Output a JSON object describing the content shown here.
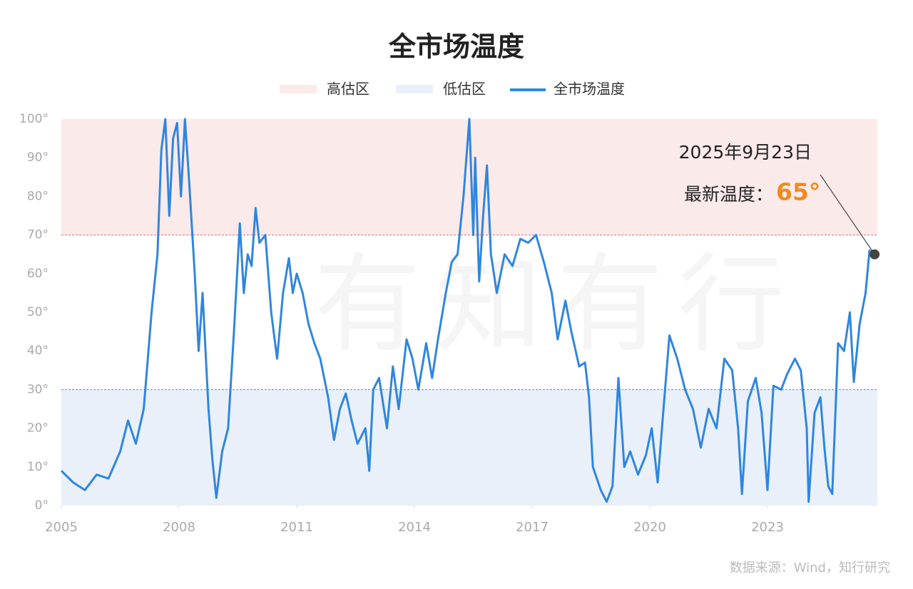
{
  "chart_data": {
    "type": "line",
    "title": "全市场温度",
    "bands": [
      {
        "name": "高估区",
        "range": [
          70,
          100
        ],
        "color": "#fbeaea",
        "line_color": "#e06a6a"
      },
      {
        "name": "低估区",
        "range": [
          0,
          30
        ],
        "color": "#e9f0fa",
        "line_color": "#4a90d9"
      }
    ],
    "x": [
      2005.0,
      2005.3,
      2005.6,
      2005.9,
      2006.2,
      2006.5,
      2006.7,
      2006.9,
      2007.1,
      2007.3,
      2007.45,
      2007.55,
      2007.65,
      2007.75,
      2007.85,
      2007.95,
      2008.05,
      2008.15,
      2008.25,
      2008.4,
      2008.5,
      2008.6,
      2008.75,
      2008.85,
      2008.95,
      2009.1,
      2009.25,
      2009.4,
      2009.55,
      2009.65,
      2009.75,
      2009.85,
      2009.95,
      2010.05,
      2010.2,
      2010.35,
      2010.5,
      2010.65,
      2010.8,
      2010.9,
      2011.0,
      2011.15,
      2011.3,
      2011.45,
      2011.6,
      2011.8,
      2011.95,
      2012.1,
      2012.25,
      2012.4,
      2012.55,
      2012.75,
      2012.85,
      2012.95,
      2013.1,
      2013.3,
      2013.45,
      2013.6,
      2013.8,
      2013.95,
      2014.1,
      2014.3,
      2014.45,
      2014.6,
      2014.8,
      2014.95,
      2015.1,
      2015.25,
      2015.4,
      2015.5,
      2015.55,
      2015.65,
      2015.75,
      2015.85,
      2015.95,
      2016.1,
      2016.3,
      2016.5,
      2016.7,
      2016.9,
      2017.1,
      2017.3,
      2017.5,
      2017.65,
      2017.85,
      2018.0,
      2018.2,
      2018.35,
      2018.45,
      2018.55,
      2018.75,
      2018.9,
      2019.05,
      2019.2,
      2019.35,
      2019.5,
      2019.7,
      2019.9,
      2020.05,
      2020.2,
      2020.35,
      2020.5,
      2020.7,
      2020.9,
      2021.1,
      2021.3,
      2021.5,
      2021.7,
      2021.9,
      2022.1,
      2022.25,
      2022.35,
      2022.5,
      2022.7,
      2022.85,
      2023.0,
      2023.15,
      2023.35,
      2023.5,
      2023.7,
      2023.85,
      2024.0,
      2024.05,
      2024.2,
      2024.35,
      2024.45,
      2024.55,
      2024.65,
      2024.8,
      2024.95,
      2025.1,
      2025.2,
      2025.35,
      2025.5,
      2025.6,
      2025.73
    ],
    "series": [
      {
        "name": "全市场温度",
        "color": "#2f86de",
        "values": [
          9,
          6,
          4,
          8,
          7,
          14,
          22,
          16,
          25,
          50,
          65,
          92,
          100,
          75,
          95,
          99,
          80,
          100,
          85,
          60,
          40,
          55,
          25,
          12,
          2,
          14,
          20,
          45,
          73,
          55,
          65,
          62,
          77,
          68,
          70,
          50,
          38,
          55,
          64,
          55,
          60,
          55,
          47,
          42,
          38,
          28,
          17,
          25,
          29,
          22,
          16,
          20,
          9,
          30,
          33,
          20,
          36,
          25,
          43,
          38,
          30,
          42,
          33,
          43,
          55,
          63,
          65,
          80,
          100,
          70,
          90,
          58,
          75,
          88,
          65,
          55,
          65,
          62,
          69,
          68,
          70,
          63,
          55,
          43,
          53,
          45,
          36,
          37,
          28,
          10,
          4,
          1,
          5,
          33,
          10,
          14,
          8,
          13,
          20,
          6,
          25,
          44,
          38,
          30,
          25,
          15,
          25,
          20,
          38,
          35,
          20,
          3,
          27,
          33,
          24,
          4,
          31,
          30,
          34,
          38,
          35,
          20,
          1,
          24,
          28,
          15,
          5,
          3,
          42,
          40,
          50,
          32,
          47,
          55,
          66,
          65
        ]
      }
    ],
    "xlim": [
      2005,
      2025.8
    ],
    "xticks": [
      2005,
      2008,
      2011,
      2014,
      2017,
      2020,
      2023
    ],
    "ylim": [
      0,
      100
    ],
    "yticks": [
      {
        "value": 0,
        "label": "0°"
      },
      {
        "value": 10,
        "label": "10°"
      },
      {
        "value": 20,
        "label": "20°"
      },
      {
        "value": 30,
        "label": "30°"
      },
      {
        "value": 40,
        "label": "40°"
      },
      {
        "value": 50,
        "label": "50°"
      },
      {
        "value": 60,
        "label": "60°"
      },
      {
        "value": 70,
        "label": "70°"
      },
      {
        "value": 80,
        "label": "80°"
      },
      {
        "value": 90,
        "label": "90°"
      },
      {
        "value": 100,
        "label": "100°"
      }
    ],
    "annotation": {
      "date": "2025年9月23日",
      "label": "最新温度：",
      "value": 65,
      "value_label": "65°",
      "color": "#ef8a1e"
    },
    "watermark": "有知有行",
    "source": "数据来源：Wind，知行研究"
  }
}
